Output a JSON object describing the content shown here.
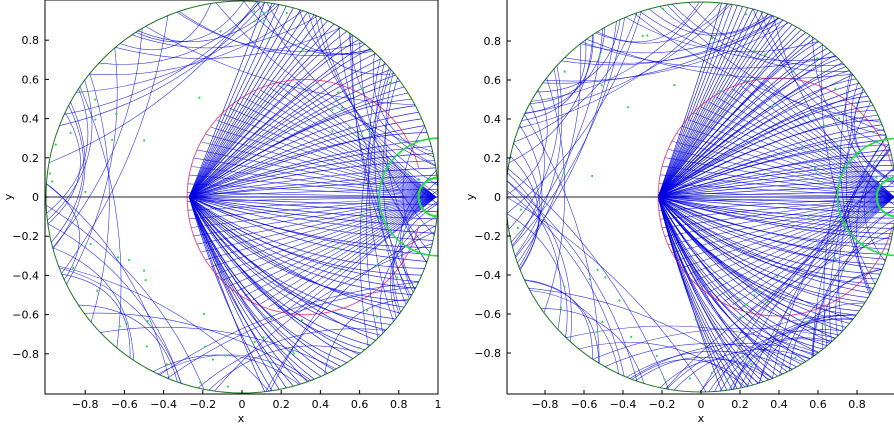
{
  "chart_data": [
    {
      "type": "diagram",
      "panel": "left",
      "xlabel": "x",
      "ylabel": "y",
      "xlim": [
        -1,
        1
      ],
      "ylim": [
        -1,
        1
      ],
      "xticks": [
        -0.8,
        -0.6,
        -0.4,
        -0.2,
        0,
        0.2,
        0.4,
        0.6,
        0.8,
        1
      ],
      "xtick_labels": [
        "−0.8",
        "−0.6",
        "−0.4",
        "−0.2",
        "0",
        "0.2",
        "0.4",
        "0.6",
        "0.8",
        "1"
      ],
      "yticks": [
        0.8,
        0.6,
        0.4,
        0.2,
        0,
        -0.2,
        -0.4,
        -0.6,
        -0.8
      ],
      "ytick_labels": [
        "0.8",
        "0.6",
        "0.4",
        "0.2",
        "0",
        "−0.2",
        "−0.4",
        "−0.6",
        "−0.8"
      ],
      "caustic_cusp_x": -0.33,
      "cusp_x": -0.27,
      "caustic_center_x": 0.32,
      "caustic_radius": 0.6,
      "ray_count": 80,
      "green_arc_radius": 0.3,
      "colors": {
        "rays": "#0000e0",
        "boundary": "#1c7a1c",
        "caustic": "#d01060",
        "markers": "#22dd44",
        "axis": "#000000"
      }
    },
    {
      "type": "diagram",
      "panel": "right",
      "xlabel": "x",
      "ylabel": "y",
      "xlim": [
        -1,
        1
      ],
      "ylim": [
        -1,
        1
      ],
      "xticks": [
        -0.8,
        -0.6,
        -0.4,
        -0.2,
        0,
        0.2,
        0.4,
        0.6,
        0.8
      ],
      "xtick_labels": [
        "−0.8",
        "−0.6",
        "−0.4",
        "−0.2",
        "0",
        "0.2",
        "0.4",
        "0.6",
        "0.8"
      ],
      "yticks": [
        0.8,
        0.6,
        0.4,
        0.2,
        0,
        -0.2,
        -0.4,
        -0.6,
        -0.8
      ],
      "ytick_labels": [
        "0.8",
        "0.6",
        "0.4",
        "0.2",
        "0",
        "−0.2",
        "−0.4",
        "−0.6",
        "−0.8"
      ],
      "cusp_x": -0.22,
      "caustic_center_x": 0.39,
      "caustic_radius": 0.61,
      "ray_count": 110,
      "green_arc_radius": 0.3,
      "colors": {
        "rays": "#0000e0",
        "boundary": "#1c7a1c",
        "caustic": "#d01060",
        "markers": "#22dd44",
        "axis": "#000000"
      }
    }
  ]
}
